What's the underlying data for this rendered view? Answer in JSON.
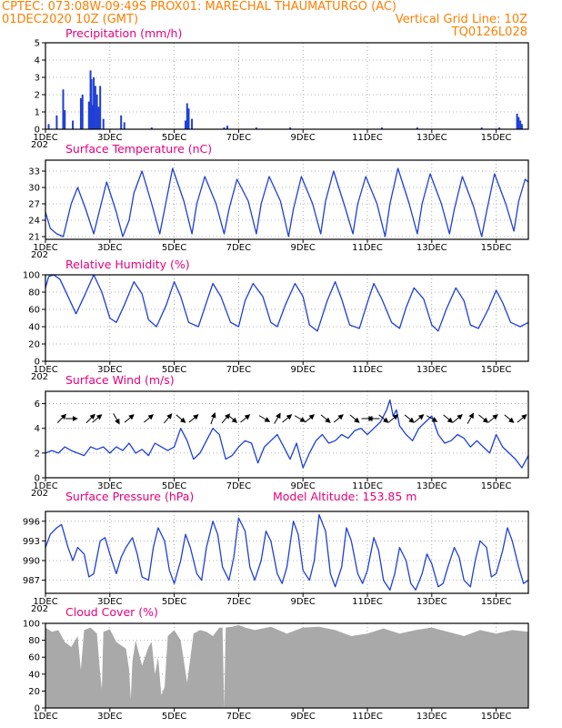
{
  "header": {
    "line1_left": "CPTEC:  073:08W-09:49S  PROX01: MARECHAL THAUMATURGO (AC)",
    "line2_left": "01DEC2020 10Z (GMT)",
    "line2_right": "Vertical Grid Line: 10Z",
    "line3_right": "TQ0126L028"
  },
  "colors": {
    "header": "#ff7f00",
    "title": "#e8007c",
    "line": "#1f3fd6",
    "bar": "#1f3fd6",
    "cloud": "#a9a9a9",
    "arrow": "#000000"
  },
  "x_axis": {
    "day_start": 1,
    "day_end": 16,
    "tick_days": [
      1,
      3,
      5,
      7,
      9,
      11,
      13,
      15
    ],
    "tick_labels": [
      "1DEC",
      "3DEC",
      "5DEC",
      "7DEC",
      "9DEC",
      "11DEC",
      "13DEC",
      "15DEC"
    ],
    "year_stub": "202"
  },
  "chart_data": [
    {
      "id": "precip",
      "type": "bar",
      "title": "Precipitation  (mm/h)",
      "unit": "mm/h",
      "ylim": [
        0,
        5
      ],
      "yticks": [
        0,
        1,
        2,
        3,
        4,
        5
      ],
      "grid": true,
      "x": [
        1.1,
        1.35,
        1.55,
        1.6,
        1.85,
        2.1,
        2.15,
        2.35,
        2.4,
        2.43,
        2.46,
        2.5,
        2.55,
        2.6,
        2.65,
        2.7,
        2.8,
        3.35,
        3.45,
        4.3,
        5.35,
        5.4,
        5.45,
        5.55,
        6.55,
        6.65,
        7.55,
        8.6,
        11.45,
        12.55,
        14.55,
        15.1,
        15.65,
        15.7,
        15.75,
        15.8
      ],
      "values": [
        0.3,
        0.8,
        2.3,
        1.1,
        0.5,
        1.8,
        2.0,
        1.6,
        3.4,
        2.9,
        1.4,
        3.0,
        2.5,
        2.0,
        1.3,
        2.5,
        0.6,
        0.8,
        0.4,
        0.1,
        0.5,
        1.5,
        1.2,
        0.6,
        0.1,
        0.2,
        0.1,
        0.1,
        0.1,
        0.1,
        0.1,
        0.1,
        0.9,
        0.7,
        0.5,
        0.3
      ]
    },
    {
      "id": "temp",
      "type": "line",
      "title": "Surface Temperature (nC)",
      "unit": "nC",
      "ylim": [
        20.5,
        35
      ],
      "yticks": [
        21,
        24,
        27,
        30,
        33
      ],
      "grid": true,
      "x": [
        1.0,
        1.15,
        1.35,
        1.55,
        1.8,
        2.0,
        2.25,
        2.5,
        2.75,
        2.9,
        3.2,
        3.4,
        3.6,
        3.75,
        4.0,
        4.3,
        4.55,
        4.7,
        4.95,
        5.3,
        5.55,
        5.7,
        5.95,
        6.3,
        6.55,
        6.7,
        6.95,
        7.3,
        7.55,
        7.7,
        7.95,
        8.3,
        8.55,
        8.7,
        8.95,
        9.3,
        9.55,
        9.7,
        9.95,
        10.3,
        10.55,
        10.7,
        10.95,
        11.3,
        11.55,
        11.7,
        11.95,
        12.3,
        12.55,
        12.7,
        12.95,
        13.3,
        13.55,
        13.7,
        13.95,
        14.3,
        14.55,
        14.7,
        14.95,
        15.3,
        15.55,
        15.7,
        15.9,
        16.0
      ],
      "values": [
        25.5,
        22.5,
        21.5,
        21.0,
        27.0,
        30.0,
        26.0,
        21.5,
        27.5,
        31.0,
        25.5,
        21.0,
        24.0,
        29.0,
        33.0,
        27.0,
        21.5,
        26.0,
        33.5,
        27.5,
        21.5,
        27.0,
        32.0,
        27.0,
        21.5,
        26.0,
        31.5,
        27.5,
        21.5,
        27.0,
        32.0,
        27.5,
        21.0,
        26.0,
        32.0,
        27.0,
        21.5,
        27.5,
        33.0,
        26.5,
        21.5,
        27.0,
        32.0,
        27.0,
        21.0,
        27.0,
        33.5,
        27.0,
        21.5,
        27.0,
        32.5,
        27.0,
        21.5,
        26.0,
        32.0,
        26.5,
        21.0,
        25.5,
        32.5,
        27.0,
        22.0,
        27.5,
        31.5,
        31.0
      ]
    },
    {
      "id": "rh",
      "type": "line",
      "title": "Relative Humidity (%)",
      "unit": "%",
      "ylim": [
        0,
        100
      ],
      "yticks": [
        0,
        20,
        40,
        60,
        80,
        100
      ],
      "grid": true,
      "x": [
        1.0,
        1.1,
        1.25,
        1.45,
        1.7,
        1.95,
        2.2,
        2.5,
        2.75,
        3.0,
        3.2,
        3.45,
        3.75,
        4.0,
        4.2,
        4.45,
        4.75,
        5.0,
        5.2,
        5.45,
        5.75,
        6.0,
        6.2,
        6.45,
        6.75,
        7.0,
        7.2,
        7.45,
        7.75,
        8.0,
        8.2,
        8.45,
        8.75,
        9.0,
        9.2,
        9.45,
        9.75,
        10.0,
        10.2,
        10.45,
        10.75,
        11.0,
        11.2,
        11.45,
        11.75,
        12.0,
        12.2,
        12.45,
        12.75,
        13.0,
        13.2,
        13.45,
        13.75,
        14.0,
        14.2,
        14.45,
        14.75,
        15.0,
        15.2,
        15.45,
        15.75,
        16.0
      ],
      "values": [
        85,
        98,
        100,
        95,
        75,
        55,
        75,
        100,
        80,
        50,
        45,
        65,
        92,
        78,
        48,
        40,
        65,
        92,
        75,
        45,
        40,
        68,
        90,
        75,
        45,
        40,
        70,
        90,
        75,
        45,
        40,
        65,
        90,
        75,
        42,
        35,
        70,
        92,
        72,
        42,
        38,
        68,
        90,
        72,
        45,
        38,
        62,
        85,
        72,
        42,
        35,
        60,
        85,
        70,
        42,
        38,
        60,
        82,
        68,
        45,
        40,
        45
      ]
    },
    {
      "id": "wind",
      "type": "line",
      "title": "Surface Wind (m/s)",
      "unit": "m/s",
      "ylim": [
        0,
        7
      ],
      "yticks": [
        0,
        2,
        4,
        6
      ],
      "grid": true,
      "x": [
        1.0,
        1.2,
        1.4,
        1.6,
        1.8,
        2.0,
        2.2,
        2.4,
        2.6,
        2.8,
        3.0,
        3.2,
        3.4,
        3.6,
        3.8,
        4.0,
        4.2,
        4.4,
        4.6,
        4.8,
        5.0,
        5.2,
        5.4,
        5.6,
        5.8,
        6.0,
        6.2,
        6.4,
        6.6,
        6.8,
        7.0,
        7.2,
        7.4,
        7.6,
        7.8,
        8.0,
        8.2,
        8.4,
        8.6,
        8.8,
        9.0,
        9.2,
        9.4,
        9.6,
        9.8,
        10.0,
        10.2,
        10.4,
        10.6,
        10.8,
        11.0,
        11.2,
        11.4,
        11.6,
        11.7,
        11.8,
        11.9,
        12.0,
        12.2,
        12.4,
        12.6,
        12.8,
        13.0,
        13.2,
        13.4,
        13.6,
        13.8,
        14.0,
        14.2,
        14.4,
        14.6,
        14.8,
        15.0,
        15.2,
        15.4,
        15.6,
        15.8,
        16.0
      ],
      "values": [
        2.0,
        2.2,
        2.0,
        2.5,
        2.2,
        2.0,
        1.8,
        2.5,
        2.3,
        2.5,
        2.0,
        2.5,
        2.2,
        2.8,
        2.0,
        2.3,
        1.8,
        2.8,
        2.5,
        2.2,
        2.5,
        4.0,
        3.0,
        1.5,
        2.0,
        3.0,
        4.0,
        3.5,
        1.5,
        1.8,
        2.5,
        3.0,
        2.8,
        1.2,
        2.5,
        3.0,
        3.5,
        2.5,
        1.5,
        2.8,
        0.8,
        2.0,
        3.0,
        3.5,
        2.8,
        3.0,
        3.5,
        3.2,
        3.8,
        4.0,
        3.5,
        4.0,
        4.5,
        5.5,
        6.3,
        5.0,
        5.5,
        4.2,
        3.5,
        3.0,
        4.0,
        4.5,
        5.0,
        3.5,
        2.8,
        3.0,
        3.5,
        3.2,
        2.5,
        3.0,
        2.5,
        2.0,
        3.5,
        2.5,
        2.0,
        1.5,
        0.8,
        1.8
      ],
      "arrows": [
        {
          "x": 1.5,
          "dir": 45
        },
        {
          "x": 1.8,
          "dir": 0
        },
        {
          "x": 2.4,
          "dir": 45
        },
        {
          "x": 2.6,
          "dir": 40
        },
        {
          "x": 3.2,
          "dir": -60
        },
        {
          "x": 3.6,
          "dir": 40
        },
        {
          "x": 4.2,
          "dir": 40
        },
        {
          "x": 4.8,
          "dir": 50
        },
        {
          "x": 5.2,
          "dir": -40
        },
        {
          "x": 5.6,
          "dir": 40
        },
        {
          "x": 6.2,
          "dir": 70
        },
        {
          "x": 6.6,
          "dir": 50
        },
        {
          "x": 6.8,
          "dir": -40
        },
        {
          "x": 7.2,
          "dir": 40
        },
        {
          "x": 7.8,
          "dir": -30
        },
        {
          "x": 8.2,
          "dir": 60
        },
        {
          "x": 8.5,
          "dir": 40
        },
        {
          "x": 8.9,
          "dir": -30
        },
        {
          "x": 9.2,
          "dir": 40
        },
        {
          "x": 9.7,
          "dir": -40
        },
        {
          "x": 10.1,
          "dir": 40
        },
        {
          "x": 10.6,
          "dir": -40
        },
        {
          "x": 11.0,
          "dir": 0
        },
        {
          "x": 11.2,
          "dir": 180
        },
        {
          "x": 11.5,
          "dir": -40
        },
        {
          "x": 11.8,
          "dir": 40
        },
        {
          "x": 12.3,
          "dir": -40
        },
        {
          "x": 12.6,
          "dir": 40
        },
        {
          "x": 13.0,
          "dir": -30
        },
        {
          "x": 13.5,
          "dir": -40
        },
        {
          "x": 13.8,
          "dir": 40
        },
        {
          "x": 14.2,
          "dir": 60
        },
        {
          "x": 14.6,
          "dir": -40
        },
        {
          "x": 14.9,
          "dir": 40
        },
        {
          "x": 15.4,
          "dir": -40
        },
        {
          "x": 15.8,
          "dir": 40
        }
      ]
    },
    {
      "id": "pres",
      "type": "line",
      "title": "Surface Pressure (hPa)",
      "subtitle": "Model Altitude: 153.85 m",
      "unit": "hPa",
      "ylim": [
        985,
        997.5
      ],
      "yticks": [
        987,
        990,
        993,
        996
      ],
      "grid": true,
      "x": [
        1.0,
        1.15,
        1.35,
        1.5,
        1.7,
        1.85,
        2.0,
        2.2,
        2.35,
        2.5,
        2.7,
        2.85,
        3.0,
        3.2,
        3.35,
        3.5,
        3.7,
        3.85,
        4.0,
        4.2,
        4.35,
        4.5,
        4.7,
        4.85,
        5.0,
        5.2,
        5.35,
        5.5,
        5.7,
        5.85,
        6.0,
        6.2,
        6.35,
        6.5,
        6.7,
        6.85,
        7.0,
        7.2,
        7.35,
        7.5,
        7.7,
        7.85,
        8.0,
        8.2,
        8.35,
        8.5,
        8.7,
        8.85,
        9.0,
        9.2,
        9.35,
        9.5,
        9.7,
        9.85,
        10.0,
        10.2,
        10.35,
        10.5,
        10.7,
        10.85,
        11.0,
        11.2,
        11.35,
        11.5,
        11.7,
        11.85,
        12.0,
        12.2,
        12.35,
        12.5,
        12.7,
        12.85,
        13.0,
        13.2,
        13.35,
        13.5,
        13.7,
        13.85,
        14.0,
        14.2,
        14.35,
        14.5,
        14.7,
        14.85,
        15.0,
        15.2,
        15.35,
        15.5,
        15.7,
        15.85,
        16.0
      ],
      "values": [
        992.0,
        994.0,
        995.0,
        995.5,
        992.0,
        990.0,
        992.0,
        991.0,
        987.5,
        988.0,
        993.0,
        993.5,
        991.0,
        988.0,
        990.5,
        992.0,
        993.5,
        991.0,
        987.5,
        987.0,
        992.0,
        995.0,
        993.0,
        988.5,
        986.5,
        990.0,
        994.0,
        992.0,
        988.0,
        987.0,
        992.0,
        996.0,
        994.0,
        989.0,
        987.0,
        990.5,
        996.5,
        994.5,
        989.0,
        987.0,
        990.0,
        994.5,
        993.0,
        988.0,
        986.5,
        989.0,
        996.0,
        994.0,
        988.5,
        987.0,
        990.0,
        997.0,
        994.5,
        988.0,
        986.0,
        989.0,
        995.0,
        993.0,
        988.0,
        986.5,
        988.5,
        993.5,
        991.5,
        987.0,
        985.5,
        988.0,
        992.0,
        990.0,
        986.5,
        985.5,
        988.0,
        991.0,
        989.5,
        986.0,
        986.5,
        989.0,
        992.0,
        990.5,
        987.0,
        986.0,
        990.0,
        993.0,
        992.0,
        987.5,
        988.0,
        991.5,
        995.0,
        993.0,
        989.0,
        986.5,
        987.0
      ]
    },
    {
      "id": "cloud",
      "type": "area",
      "title": "Cloud Cover (%)",
      "unit": "%",
      "ylim": [
        0,
        100
      ],
      "yticks": [
        0,
        20,
        40,
        60,
        80,
        100
      ],
      "grid": true,
      "x": [
        1.0,
        1.2,
        1.4,
        1.6,
        1.8,
        2.0,
        2.1,
        2.2,
        2.4,
        2.6,
        2.7,
        2.75,
        2.8,
        3.0,
        3.2,
        3.5,
        3.6,
        3.65,
        3.7,
        3.8,
        4.0,
        4.2,
        4.3,
        4.4,
        4.5,
        4.6,
        4.7,
        4.8,
        5.0,
        5.2,
        5.4,
        5.6,
        5.8,
        6.0,
        6.2,
        6.4,
        6.5,
        6.55,
        6.6,
        6.8,
        7.0,
        7.2,
        7.5,
        8.0,
        8.5,
        9.0,
        9.5,
        10.0,
        10.5,
        11.0,
        11.5,
        12.0,
        12.5,
        13.0,
        13.5,
        14.0,
        14.5,
        15.0,
        15.5,
        16.0
      ],
      "values": [
        95,
        90,
        92,
        78,
        72,
        85,
        45,
        92,
        95,
        88,
        40,
        22,
        90,
        93,
        78,
        70,
        45,
        10,
        55,
        80,
        50,
        72,
        78,
        40,
        60,
        15,
        25,
        85,
        92,
        80,
        30,
        88,
        92,
        90,
        85,
        95,
        95,
        0,
        95,
        96,
        98,
        95,
        92,
        96,
        88,
        95,
        96,
        92,
        85,
        88,
        94,
        88,
        92,
        95,
        90,
        85,
        92,
        88,
        92,
        90
      ]
    }
  ]
}
